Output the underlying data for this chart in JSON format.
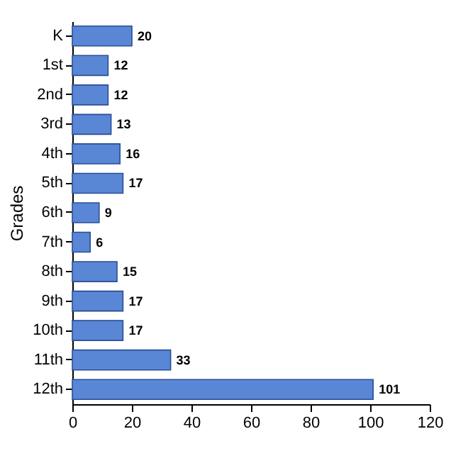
{
  "chart_data": {
    "type": "bar",
    "orientation": "horizontal",
    "ylabel": "Grades",
    "categories": [
      "K",
      "1st",
      "2nd",
      "3rd",
      "4th",
      "5th",
      "6th",
      "7th",
      "8th",
      "9th",
      "10th",
      "11th",
      "12th"
    ],
    "values": [
      20,
      12,
      12,
      13,
      16,
      17,
      9,
      6,
      15,
      17,
      17,
      33,
      101
    ],
    "color": "#5a86d6",
    "xlim": [
      0,
      120
    ],
    "xticks": [
      0,
      20,
      40,
      60,
      80,
      100,
      120
    ],
    "data_labels": true,
    "grid": false
  }
}
